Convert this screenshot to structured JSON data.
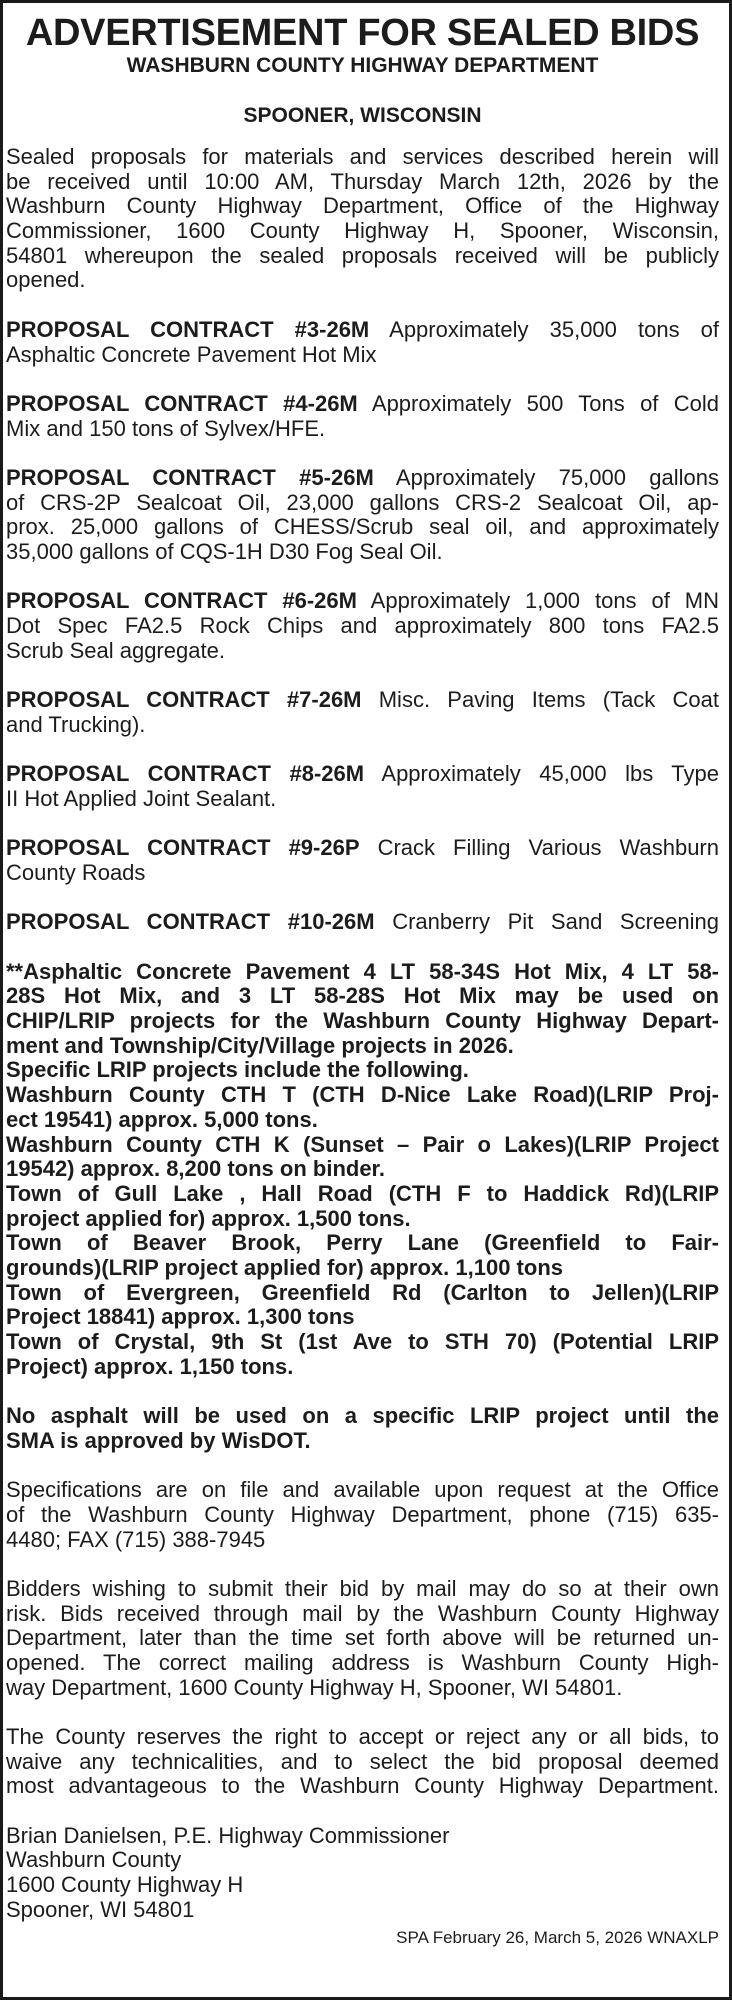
{
  "header": {
    "title": "ADVERTISEMENT FOR SEALED BIDS",
    "subtitle": "WASHBURN COUNTY HIGHWAY DEPARTMENT",
    "location": "SPOONER, WISCONSIN"
  },
  "intro": [
    "Sealed proposals for materials and services described herein will",
    "be received until 10:00 AM, Thursday March 12th, 2026 by the",
    "Washburn County Highway Department, Office of the Highway",
    "Commissioner, 1600 County Highway H, Spooner, Wisconsin,",
    "54801 whereupon the sealed proposals received will be publicly",
    "opened."
  ],
  "proposals": [
    {
      "label": "PROPOSAL CONTRACT #3-26M",
      "lines": [
        "Approximately 35,000 tons of",
        "Asphaltic Concrete Pavement Hot Mix"
      ]
    },
    {
      "label": "PROPOSAL CONTRACT #4-26M",
      "lines": [
        "Approximately 500 Tons of Cold",
        "Mix and 150 tons of Sylvex/HFE."
      ]
    },
    {
      "label": "PROPOSAL CONTRACT #5-26M",
      "lines": [
        "Approximately 75,000 gallons",
        "of CRS-2P Sealcoat Oil, 23,000 gallons CRS-2 Sealcoat Oil, ap-",
        "prox. 25,000 gallons of CHESS/Scrub seal oil, and approximately",
        "35,000 gallons of CQS-1H D30 Fog Seal Oil."
      ]
    },
    {
      "label": "PROPOSAL CONTRACT #6-26M",
      "lines": [
        "Approximately 1,000 tons of MN",
        "Dot Spec FA2.5 Rock Chips and approximately 800 tons FA2.5",
        "Scrub Seal aggregate."
      ]
    },
    {
      "label": "PROPOSAL CONTRACT #7-26M",
      "lines": [
        "Misc. Paving Items (Tack Coat",
        "and Trucking)."
      ]
    },
    {
      "label": "PROPOSAL CONTRACT #8-26M",
      "lines": [
        "Approximately 45,000 lbs Type",
        "II Hot Applied Joint Sealant."
      ]
    },
    {
      "label": "PROPOSAL CONTRACT #9-26P",
      "lines": [
        "Crack Filling Various Washburn",
        "County Roads"
      ]
    },
    {
      "label": "PROPOSAL CONTRACT #10-26M",
      "lines": [
        "Cranberry Pit Sand Screening"
      ]
    }
  ],
  "lrip_notes": [
    [
      "**Asphaltic Concrete Pavement 4 LT 58-34S Hot Mix, 4 LT 58-",
      "28S Hot Mix, and 3 LT 58-28S Hot Mix may be used on",
      "CHIP/LRIP projects for the Washburn County Highway Depart-",
      "ment and Township/City/Village projects in 2026."
    ],
    [
      "Specific LRIP projects include the following."
    ],
    [
      "Washburn County CTH T (CTH D-Nice Lake Road)(LRIP Proj-",
      "ect 19541) approx. 5,000 tons."
    ],
    [
      "Washburn County CTH K (Sunset – Pair o Lakes)(LRIP Project",
      "19542) approx. 8,200 tons on binder."
    ],
    [
      "Town of Gull Lake , Hall Road (CTH F to Haddick Rd)(LRIP",
      "project applied for) approx. 1,500 tons."
    ],
    [
      "Town of Beaver Brook, Perry Lane (Greenfield to Fair-",
      "grounds)(LRIP project applied for) approx. 1,100 tons"
    ],
    [
      "Town of Evergreen, Greenfield Rd (Carlton to Jellen)(LRIP",
      "Project 18841) approx. 1,300 tons"
    ],
    [
      "Town of Crystal, 9th St (1st Ave to STH 70) (Potential LRIP",
      "Project) approx. 1,150 tons."
    ]
  ],
  "sma_notice": [
    "No asphalt will be used on a specific LRIP project until the",
    "SMA is approved by WisDOT."
  ],
  "specifications": [
    "Specifications are on file and available upon request at the Office",
    "of the Washburn County Highway Department, phone (715) 635-",
    "4480; FAX (715) 388-7945"
  ],
  "mail_bids": [
    "Bidders wishing to submit their bid by mail may do so at their own",
    "risk.  Bids received through mail by the Washburn County Highway",
    "Department, later than the time set forth above will be returned un-",
    "opened.  The correct mailing address is Washburn County High-",
    "way Department, 1600 County Highway H, Spooner, WI 54801."
  ],
  "rights": [
    "The County reserves the right to accept or reject any or all bids, to",
    "waive any technicalities, and to select the bid proposal deemed",
    "most advantageous to the Washburn County Highway Department."
  ],
  "signature": [
    "Brian Danielsen, P.E. Highway Commissioner",
    "Washburn County",
    "1600 County Highway H",
    "Spooner, WI 54801"
  ],
  "footer": "SPA February 26, March 5, 2026 WNAXLP"
}
